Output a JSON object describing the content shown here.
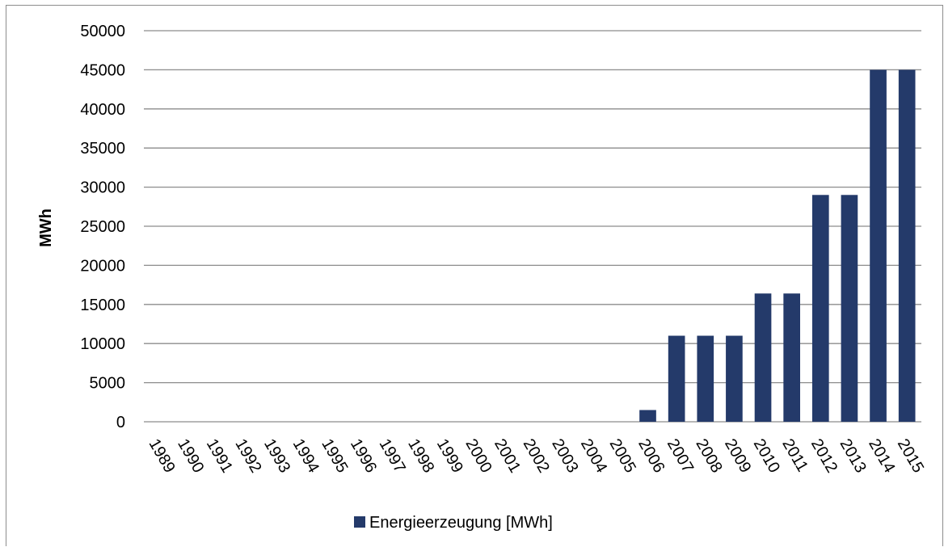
{
  "chart_data": {
    "type": "bar",
    "categories": [
      "1989",
      "1990",
      "1991",
      "1992",
      "1993",
      "1994",
      "1995",
      "1996",
      "1997",
      "1998",
      "1999",
      "2000",
      "2001",
      "2002",
      "2003",
      "2004",
      "2005",
      "2006",
      "2007",
      "2008",
      "2009",
      "2010",
      "2011",
      "2012",
      "2013",
      "2014",
      "2015"
    ],
    "series": [
      {
        "name": "Energieerzeugung [MWh]",
        "color": "#243a6a",
        "values": [
          0,
          0,
          0,
          0,
          0,
          0,
          0,
          0,
          0,
          0,
          0,
          0,
          0,
          0,
          0,
          0,
          0,
          1500,
          11000,
          11000,
          11000,
          16400,
          16400,
          29000,
          29000,
          45000,
          45000
        ]
      }
    ],
    "ylabel": "MWh",
    "xlabel": "",
    "ylim": [
      0,
      50000
    ],
    "yticks": [
      0,
      5000,
      10000,
      15000,
      20000,
      25000,
      30000,
      35000,
      40000,
      45000,
      50000
    ],
    "grid": true,
    "legend_position": "bottom"
  }
}
